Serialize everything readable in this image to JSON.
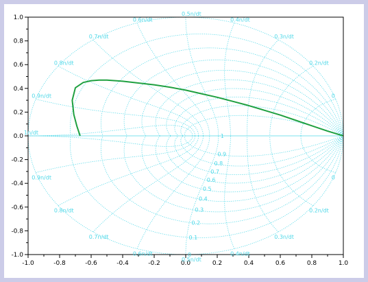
{
  "chart_data": {
    "type": "line",
    "title": "",
    "xlabel": "",
    "ylabel": "",
    "xlim": [
      -1.0,
      1.0
    ],
    "ylim": [
      -1.0,
      1.0
    ],
    "x_ticks": [
      "-1.0",
      "-0.8",
      "-0.6",
      "-0.4",
      "-0.2",
      "0.0",
      "0.2",
      "0.4",
      "0.6",
      "0.8",
      "1.0"
    ],
    "y_ticks": [
      "1.0",
      "0.8",
      "0.6",
      "0.4",
      "0.2",
      "0.0",
      "-0.2",
      "-0.4",
      "-0.6",
      "-0.8",
      "-1.0"
    ],
    "grid": "z-plane damping / natural-frequency grid",
    "damping_labels": [
      "1",
      "0.9",
      "0.8",
      "0.7",
      "0.6",
      "0.5",
      "0.4",
      "0.3",
      "0.2",
      "0.1",
      "0"
    ],
    "frequency_labels_upper": [
      "1n/dt",
      "0.9n/dt",
      "0.8n/dt",
      "0.7n/dt",
      "0.6n/dt",
      "0.5n/dt",
      "0.4n/dt",
      "0.3n/dt",
      "0.2n/dt",
      "0"
    ],
    "frequency_labels_lower": [
      "0.9n/dt",
      "0.8n/dt",
      "0.7n/dt",
      "0.6n/dt",
      "0.5n/dt",
      "0.4n/dt",
      "0.3n/dt",
      "0.2n/dt",
      "0"
    ],
    "series": [
      {
        "x": [
          1.0,
          0.9,
          0.8,
          0.7,
          0.6,
          0.5,
          0.4,
          0.3,
          0.2,
          0.1,
          0.0,
          -0.1,
          -0.2,
          -0.3,
          -0.4,
          -0.5,
          -0.55,
          -0.6,
          -0.65,
          -0.7,
          -0.72,
          -0.71,
          -0.69,
          -0.67
        ],
        "y": [
          0.0,
          0.04,
          0.085,
          0.13,
          0.175,
          0.215,
          0.255,
          0.29,
          0.325,
          0.355,
          0.385,
          0.41,
          0.43,
          0.445,
          0.46,
          0.47,
          0.47,
          0.465,
          0.45,
          0.405,
          0.3,
          0.18,
          0.08,
          0.0
        ],
        "color": "#1fa040"
      }
    ]
  },
  "colors": {
    "grid": "#4fd8e8",
    "curve": "#1fa040",
    "axes": "#000000",
    "background": "#ffffff",
    "frame": "#cccce8"
  }
}
